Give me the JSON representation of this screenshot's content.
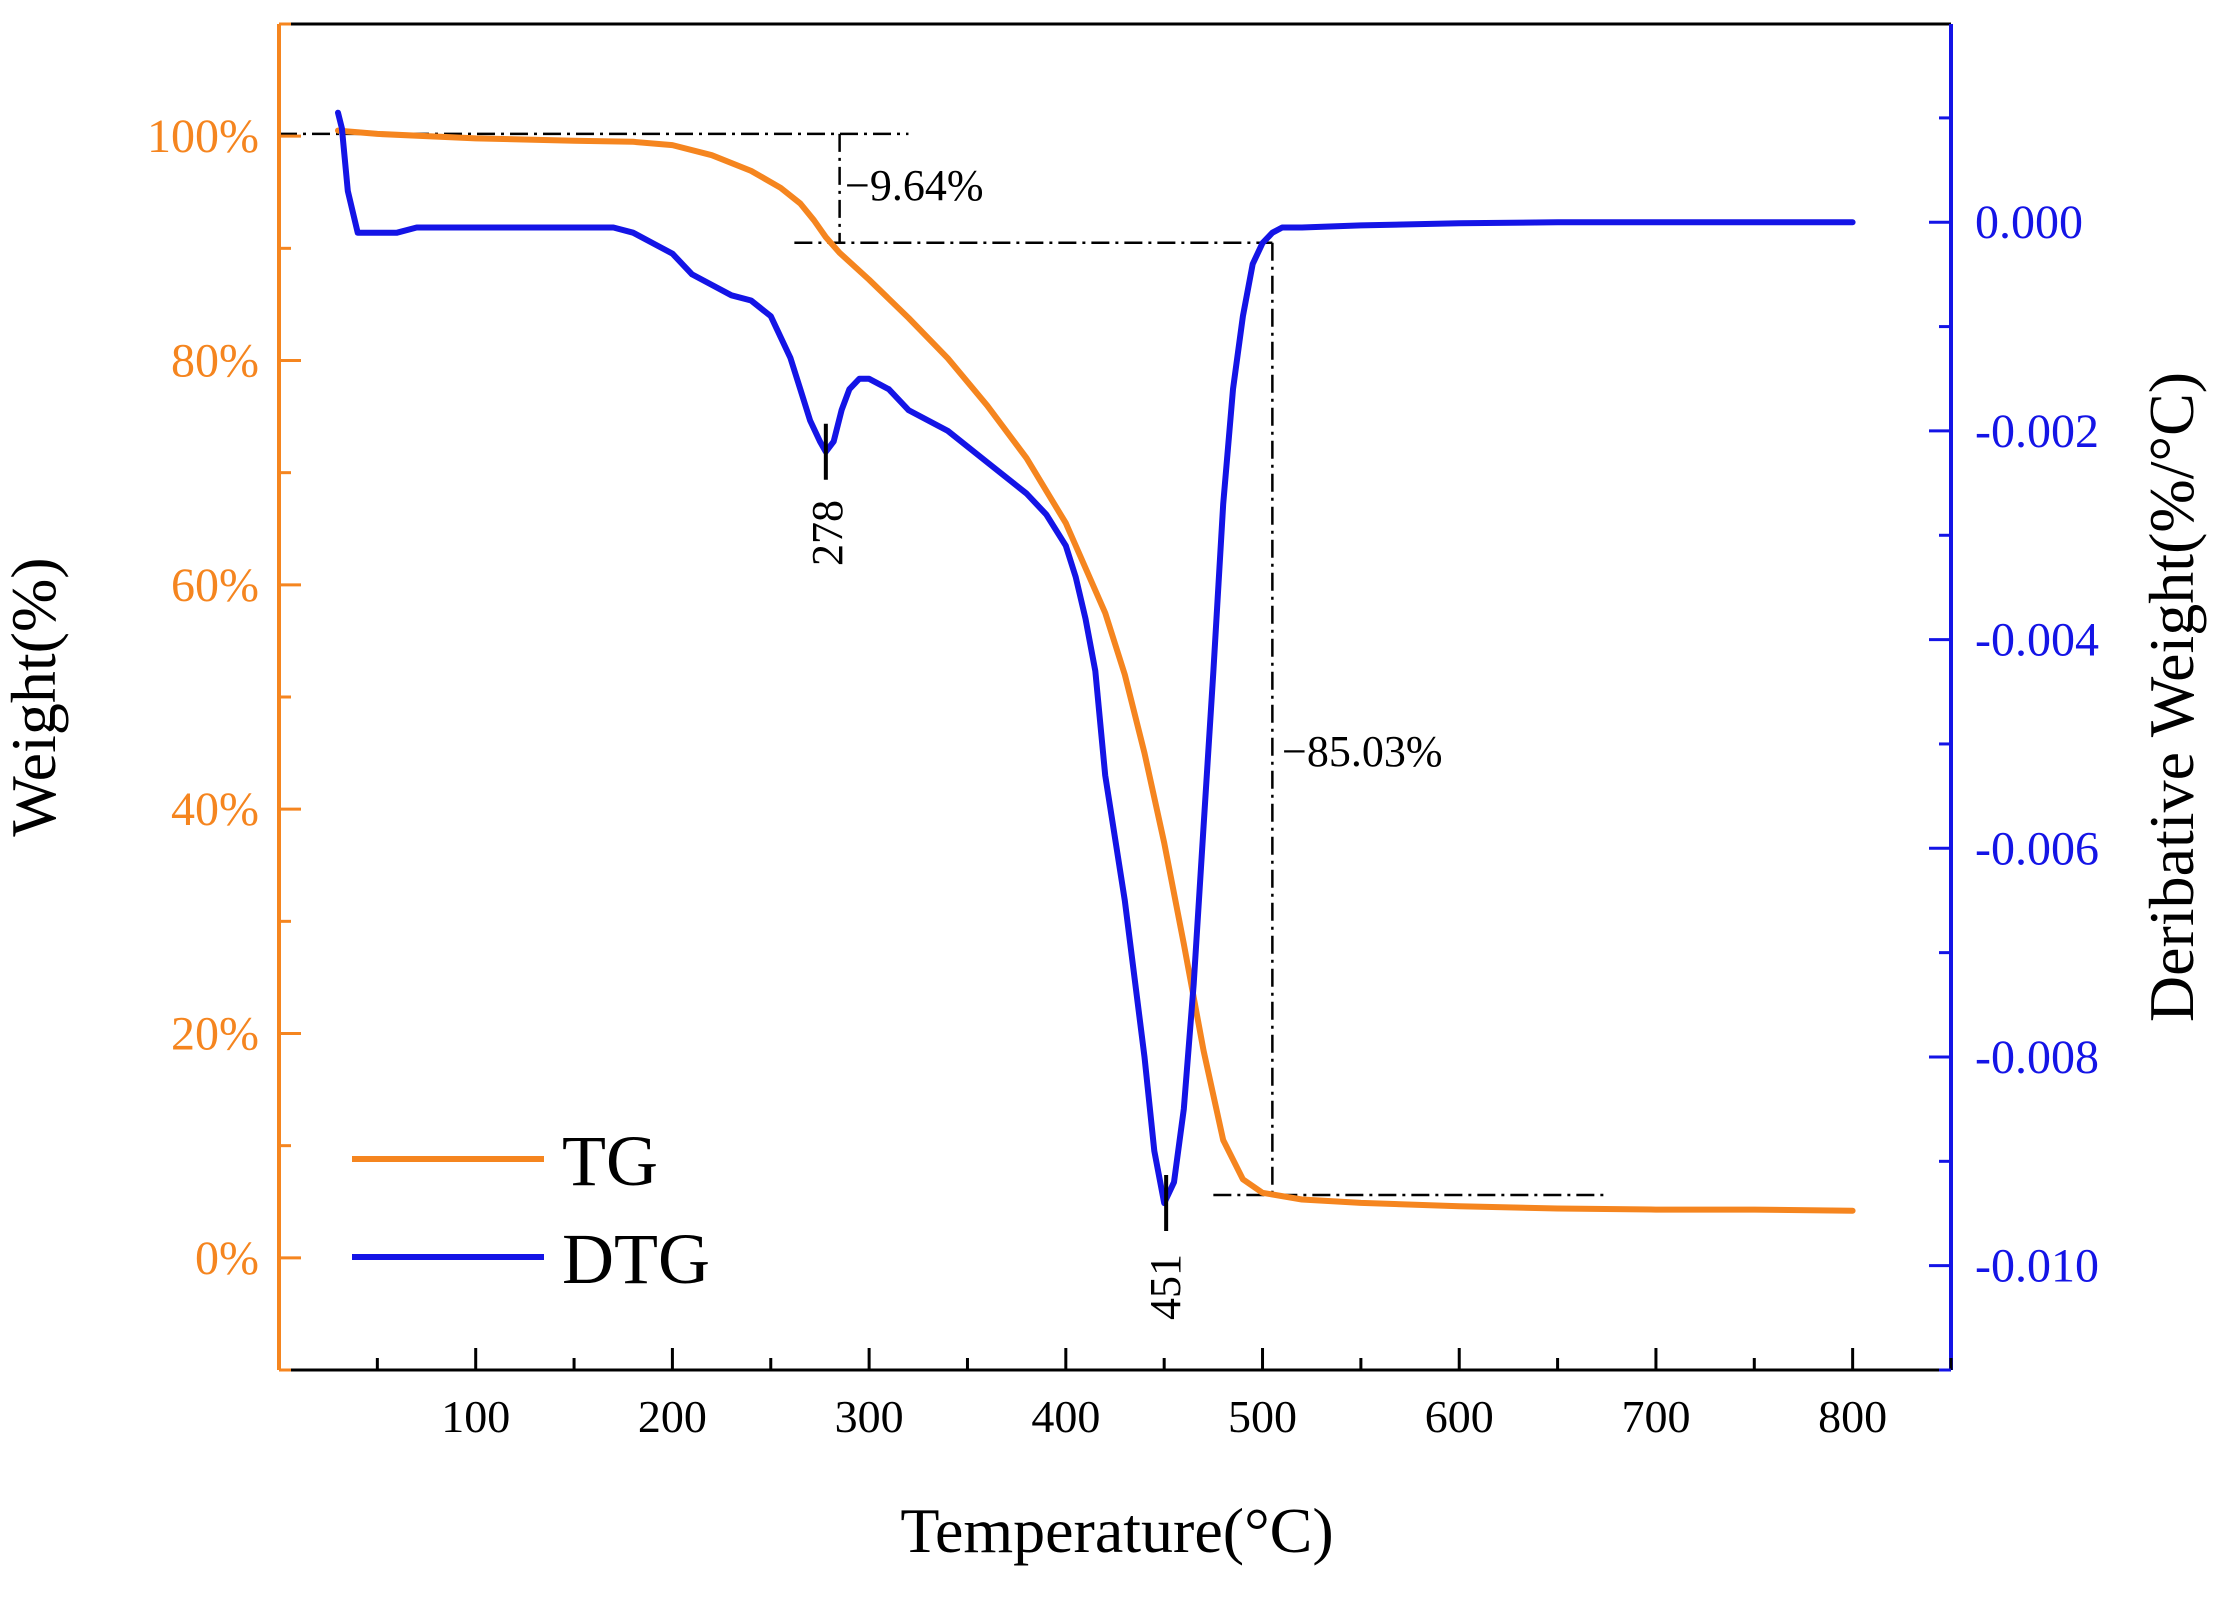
{
  "colors": {
    "tg": "#F5851F",
    "dtg": "#1414E6",
    "frame": "#000000",
    "annotation": "#000000",
    "background": "#FFFFFF"
  },
  "chart_data": {
    "type": "line",
    "title": "",
    "xlabel": "Temperature(°C)",
    "ylabel_left": "Weight(%)",
    "ylabel_right": "Deribative Weight(%/°C)",
    "xlim": [
      0,
      850
    ],
    "ylim_left": [
      -10,
      110
    ],
    "ylim_right": [
      -0.011,
      0.0019
    ],
    "x_ticks": [
      100,
      200,
      300,
      400,
      500,
      600,
      700,
      800
    ],
    "x_tick_labels": [
      "100",
      "200",
      "300",
      "400",
      "500",
      "600",
      "700",
      "800"
    ],
    "y_left_ticks": [
      0,
      20,
      40,
      60,
      80,
      100
    ],
    "y_left_tick_labels": [
      "0%",
      "20%",
      "40%",
      "60%",
      "80%",
      "100%"
    ],
    "y_right_ticks": [
      0.0,
      -0.002,
      -0.004,
      -0.006,
      -0.008,
      -0.01
    ],
    "y_right_tick_labels": [
      "0.000",
      "-0.002",
      "-0.004",
      "-0.006",
      "-0.008",
      "-0.010"
    ],
    "grid": false,
    "legend": {
      "position": "bottom-left",
      "entries": [
        "TG",
        "DTG"
      ]
    },
    "series": [
      {
        "name": "TG",
        "axis": "left",
        "x": [
          30,
          50,
          100,
          150,
          180,
          200,
          220,
          240,
          255,
          265,
          272,
          278,
          285,
          300,
          320,
          340,
          360,
          380,
          400,
          420,
          430,
          440,
          450,
          460,
          470,
          480,
          490,
          500,
          520,
          550,
          600,
          650,
          700,
          750,
          800
        ],
        "values": [
          100.5,
          100.2,
          99.8,
          99.6,
          99.5,
          99.2,
          98.3,
          96.9,
          95.4,
          94.0,
          92.5,
          91.0,
          89.6,
          87.2,
          83.8,
          80.2,
          76.0,
          71.3,
          65.5,
          57.5,
          52.0,
          45.0,
          37.0,
          28.0,
          18.5,
          10.5,
          7.0,
          5.8,
          5.2,
          4.9,
          4.6,
          4.4,
          4.3,
          4.3,
          4.2
        ]
      },
      {
        "name": "DTG",
        "axis": "right",
        "x": [
          30,
          32,
          35,
          40,
          45,
          50,
          55,
          60,
          70,
          80,
          90,
          100,
          120,
          150,
          170,
          180,
          190,
          200,
          210,
          220,
          230,
          240,
          250,
          260,
          265,
          270,
          275,
          278,
          282,
          286,
          290,
          295,
          300,
          310,
          320,
          340,
          360,
          380,
          390,
          400,
          405,
          410,
          415,
          420,
          430,
          440,
          445,
          450,
          455,
          460,
          465,
          470,
          475,
          480,
          485,
          490,
          495,
          500,
          505,
          510,
          520,
          550,
          600,
          650,
          700,
          750,
          800
        ],
        "values": [
          0.00105,
          0.0009,
          0.0003,
          -0.0001,
          -0.0001,
          -0.0001,
          -0.0001,
          -0.0001,
          -5e-05,
          -5e-05,
          -5e-05,
          -5e-05,
          -5e-05,
          -5e-05,
          -5e-05,
          -0.0001,
          -0.0002,
          -0.0003,
          -0.0005,
          -0.0006,
          -0.0007,
          -0.00075,
          -0.0009,
          -0.0013,
          -0.0016,
          -0.0019,
          -0.0021,
          -0.0022,
          -0.0021,
          -0.0018,
          -0.0016,
          -0.0015,
          -0.0015,
          -0.0016,
          -0.0018,
          -0.002,
          -0.0023,
          -0.0026,
          -0.0028,
          -0.0031,
          -0.0034,
          -0.0038,
          -0.0043,
          -0.0053,
          -0.0065,
          -0.008,
          -0.0089,
          -0.0094,
          -0.0092,
          -0.0085,
          -0.0073,
          -0.0058,
          -0.0043,
          -0.0027,
          -0.0016,
          -0.0009,
          -0.0004,
          -0.0002,
          -0.0001,
          -5e-05,
          -5e-05,
          -3e-05,
          -1e-05,
          0.0,
          0.0,
          0.0,
          0.0
        ]
      }
    ],
    "annotations": [
      {
        "text": "−9.64%",
        "x": 285,
        "y_left": 95.3
      },
      {
        "text": "−85.03%",
        "x": 505,
        "y_left": 48.0
      },
      {
        "text": "278",
        "x": 278,
        "dtg_value": -0.0022
      },
      {
        "text": "451",
        "x": 451,
        "dtg_value": -0.0094
      }
    ]
  }
}
